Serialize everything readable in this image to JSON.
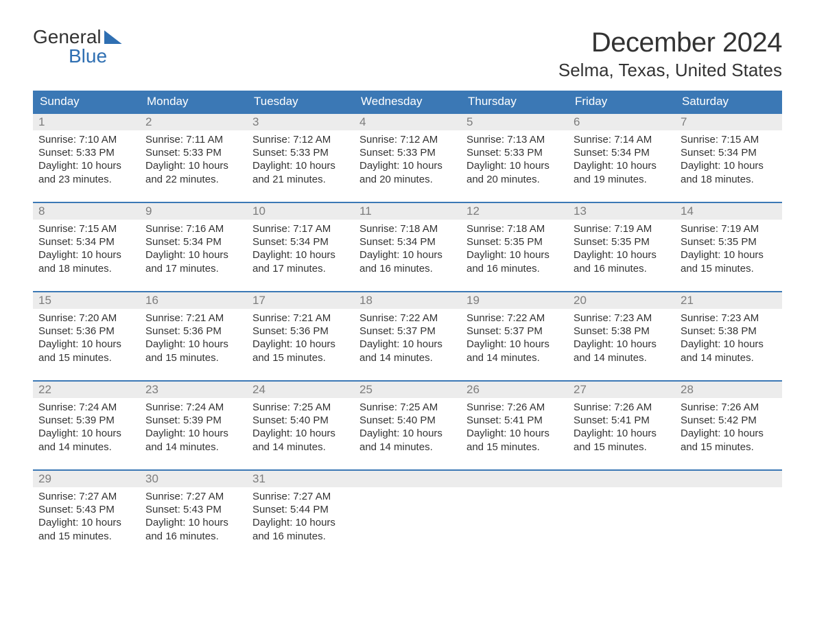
{
  "logo": {
    "top": "General",
    "bottom": "Blue"
  },
  "title": "December 2024",
  "location": "Selma, Texas, United States",
  "colors": {
    "header_bg": "#3b78b5",
    "header_text": "#ffffff",
    "daynum_bg": "#ececec",
    "daynum_text": "#7d7d7d",
    "body_text": "#333333",
    "accent": "#2f6fb2",
    "page_bg": "#ffffff"
  },
  "typography": {
    "title_fontsize": 40,
    "location_fontsize": 26,
    "dow_fontsize": 17,
    "body_fontsize": 15
  },
  "layout": {
    "columns": 7,
    "rows": 5
  },
  "days_of_week": [
    "Sunday",
    "Monday",
    "Tuesday",
    "Wednesday",
    "Thursday",
    "Friday",
    "Saturday"
  ],
  "weeks": [
    [
      {
        "num": "1",
        "sunrise": "Sunrise: 7:10 AM",
        "sunset": "Sunset: 5:33 PM",
        "daylight": "Daylight: 10 hours and 23 minutes."
      },
      {
        "num": "2",
        "sunrise": "Sunrise: 7:11 AM",
        "sunset": "Sunset: 5:33 PM",
        "daylight": "Daylight: 10 hours and 22 minutes."
      },
      {
        "num": "3",
        "sunrise": "Sunrise: 7:12 AM",
        "sunset": "Sunset: 5:33 PM",
        "daylight": "Daylight: 10 hours and 21 minutes."
      },
      {
        "num": "4",
        "sunrise": "Sunrise: 7:12 AM",
        "sunset": "Sunset: 5:33 PM",
        "daylight": "Daylight: 10 hours and 20 minutes."
      },
      {
        "num": "5",
        "sunrise": "Sunrise: 7:13 AM",
        "sunset": "Sunset: 5:33 PM",
        "daylight": "Daylight: 10 hours and 20 minutes."
      },
      {
        "num": "6",
        "sunrise": "Sunrise: 7:14 AM",
        "sunset": "Sunset: 5:34 PM",
        "daylight": "Daylight: 10 hours and 19 minutes."
      },
      {
        "num": "7",
        "sunrise": "Sunrise: 7:15 AM",
        "sunset": "Sunset: 5:34 PM",
        "daylight": "Daylight: 10 hours and 18 minutes."
      }
    ],
    [
      {
        "num": "8",
        "sunrise": "Sunrise: 7:15 AM",
        "sunset": "Sunset: 5:34 PM",
        "daylight": "Daylight: 10 hours and 18 minutes."
      },
      {
        "num": "9",
        "sunrise": "Sunrise: 7:16 AM",
        "sunset": "Sunset: 5:34 PM",
        "daylight": "Daylight: 10 hours and 17 minutes."
      },
      {
        "num": "10",
        "sunrise": "Sunrise: 7:17 AM",
        "sunset": "Sunset: 5:34 PM",
        "daylight": "Daylight: 10 hours and 17 minutes."
      },
      {
        "num": "11",
        "sunrise": "Sunrise: 7:18 AM",
        "sunset": "Sunset: 5:34 PM",
        "daylight": "Daylight: 10 hours and 16 minutes."
      },
      {
        "num": "12",
        "sunrise": "Sunrise: 7:18 AM",
        "sunset": "Sunset: 5:35 PM",
        "daylight": "Daylight: 10 hours and 16 minutes."
      },
      {
        "num": "13",
        "sunrise": "Sunrise: 7:19 AM",
        "sunset": "Sunset: 5:35 PM",
        "daylight": "Daylight: 10 hours and 16 minutes."
      },
      {
        "num": "14",
        "sunrise": "Sunrise: 7:19 AM",
        "sunset": "Sunset: 5:35 PM",
        "daylight": "Daylight: 10 hours and 15 minutes."
      }
    ],
    [
      {
        "num": "15",
        "sunrise": "Sunrise: 7:20 AM",
        "sunset": "Sunset: 5:36 PM",
        "daylight": "Daylight: 10 hours and 15 minutes."
      },
      {
        "num": "16",
        "sunrise": "Sunrise: 7:21 AM",
        "sunset": "Sunset: 5:36 PM",
        "daylight": "Daylight: 10 hours and 15 minutes."
      },
      {
        "num": "17",
        "sunrise": "Sunrise: 7:21 AM",
        "sunset": "Sunset: 5:36 PM",
        "daylight": "Daylight: 10 hours and 15 minutes."
      },
      {
        "num": "18",
        "sunrise": "Sunrise: 7:22 AM",
        "sunset": "Sunset: 5:37 PM",
        "daylight": "Daylight: 10 hours and 14 minutes."
      },
      {
        "num": "19",
        "sunrise": "Sunrise: 7:22 AM",
        "sunset": "Sunset: 5:37 PM",
        "daylight": "Daylight: 10 hours and 14 minutes."
      },
      {
        "num": "20",
        "sunrise": "Sunrise: 7:23 AM",
        "sunset": "Sunset: 5:38 PM",
        "daylight": "Daylight: 10 hours and 14 minutes."
      },
      {
        "num": "21",
        "sunrise": "Sunrise: 7:23 AM",
        "sunset": "Sunset: 5:38 PM",
        "daylight": "Daylight: 10 hours and 14 minutes."
      }
    ],
    [
      {
        "num": "22",
        "sunrise": "Sunrise: 7:24 AM",
        "sunset": "Sunset: 5:39 PM",
        "daylight": "Daylight: 10 hours and 14 minutes."
      },
      {
        "num": "23",
        "sunrise": "Sunrise: 7:24 AM",
        "sunset": "Sunset: 5:39 PM",
        "daylight": "Daylight: 10 hours and 14 minutes."
      },
      {
        "num": "24",
        "sunrise": "Sunrise: 7:25 AM",
        "sunset": "Sunset: 5:40 PM",
        "daylight": "Daylight: 10 hours and 14 minutes."
      },
      {
        "num": "25",
        "sunrise": "Sunrise: 7:25 AM",
        "sunset": "Sunset: 5:40 PM",
        "daylight": "Daylight: 10 hours and 14 minutes."
      },
      {
        "num": "26",
        "sunrise": "Sunrise: 7:26 AM",
        "sunset": "Sunset: 5:41 PM",
        "daylight": "Daylight: 10 hours and 15 minutes."
      },
      {
        "num": "27",
        "sunrise": "Sunrise: 7:26 AM",
        "sunset": "Sunset: 5:41 PM",
        "daylight": "Daylight: 10 hours and 15 minutes."
      },
      {
        "num": "28",
        "sunrise": "Sunrise: 7:26 AM",
        "sunset": "Sunset: 5:42 PM",
        "daylight": "Daylight: 10 hours and 15 minutes."
      }
    ],
    [
      {
        "num": "29",
        "sunrise": "Sunrise: 7:27 AM",
        "sunset": "Sunset: 5:43 PM",
        "daylight": "Daylight: 10 hours and 15 minutes."
      },
      {
        "num": "30",
        "sunrise": "Sunrise: 7:27 AM",
        "sunset": "Sunset: 5:43 PM",
        "daylight": "Daylight: 10 hours and 16 minutes."
      },
      {
        "num": "31",
        "sunrise": "Sunrise: 7:27 AM",
        "sunset": "Sunset: 5:44 PM",
        "daylight": "Daylight: 10 hours and 16 minutes."
      },
      null,
      null,
      null,
      null
    ]
  ]
}
